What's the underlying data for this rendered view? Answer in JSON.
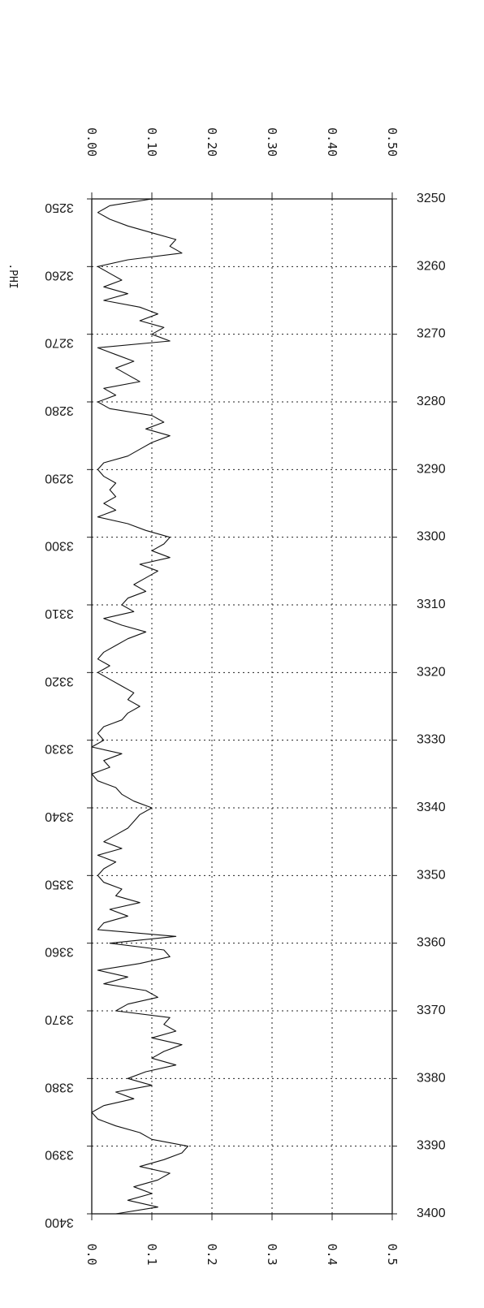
{
  "chart_data": {
    "type": "line",
    "orientation": "vertical-well-log",
    "curve_name": ".PHI",
    "y_axis": {
      "ylim": [
        3250,
        3400
      ],
      "step": 10,
      "labels": [
        "3250",
        "3260",
        "3270",
        "3280",
        "3290",
        "3300",
        "3310",
        "3320",
        "3330",
        "3340",
        "3350",
        "3360",
        "3370",
        "3380",
        "3390",
        "3400"
      ]
    },
    "x_axis": {
      "xlim": [
        0,
        0.5
      ],
      "step": 0.1,
      "top_labels": [
        "0.00",
        "0.10",
        "0.20",
        "0.30",
        "0.40",
        "0.50"
      ],
      "bottom_labels": [
        "0.0",
        "0.1",
        "0.2",
        "0.3",
        "0.4",
        "0.5"
      ]
    },
    "grid": true,
    "series": [
      {
        "name": ".PHI",
        "depth": [
          3250,
          3251,
          3252,
          3253,
          3254,
          3255,
          3256,
          3257,
          3258,
          3259,
          3260,
          3261,
          3262,
          3263,
          3264,
          3265,
          3266,
          3267,
          3268,
          3269,
          3270,
          3271,
          3272,
          3273,
          3274,
          3275,
          3276,
          3277,
          3278,
          3279,
          3280,
          3281,
          3282,
          3283,
          3284,
          3285,
          3286,
          3287,
          3288,
          3289,
          3290,
          3291,
          3292,
          3293,
          3294,
          3295,
          3296,
          3297,
          3298,
          3299,
          3300,
          3301,
          3302,
          3303,
          3304,
          3305,
          3306,
          3307,
          3308,
          3309,
          3310,
          3311,
          3312,
          3313,
          3314,
          3315,
          3316,
          3317,
          3318,
          3319,
          3320,
          3321,
          3322,
          3323,
          3324,
          3325,
          3326,
          3327,
          3328,
          3329,
          3330,
          3331,
          3332,
          3333,
          3334,
          3335,
          3336,
          3337,
          3338,
          3339,
          3340,
          3341,
          3342,
          3343,
          3344,
          3345,
          3346,
          3347,
          3348,
          3349,
          3350,
          3351,
          3352,
          3353,
          3354,
          3355,
          3356,
          3357,
          3358,
          3359,
          3360,
          3361,
          3362,
          3363,
          3364,
          3365,
          3366,
          3367,
          3368,
          3369,
          3370,
          3371,
          3372,
          3373,
          3374,
          3375,
          3376,
          3377,
          3378,
          3379,
          3380,
          3381,
          3382,
          3383,
          3384,
          3385,
          3386,
          3387,
          3388,
          3389,
          3390,
          3391,
          3392,
          3393,
          3394,
          3395,
          3396,
          3397,
          3398,
          3399,
          3400
        ],
        "phi": [
          0.1,
          0.03,
          0.01,
          0.03,
          0.06,
          0.1,
          0.14,
          0.13,
          0.15,
          0.06,
          0.01,
          0.03,
          0.05,
          0.02,
          0.06,
          0.02,
          0.08,
          0.11,
          0.08,
          0.12,
          0.1,
          0.13,
          0.01,
          0.04,
          0.07,
          0.04,
          0.06,
          0.08,
          0.02,
          0.04,
          0.01,
          0.03,
          0.1,
          0.12,
          0.09,
          0.13,
          0.1,
          0.08,
          0.06,
          0.02,
          0.01,
          0.02,
          0.04,
          0.03,
          0.04,
          0.02,
          0.04,
          0.01,
          0.06,
          0.09,
          0.13,
          0.12,
          0.1,
          0.13,
          0.08,
          0.11,
          0.09,
          0.07,
          0.09,
          0.06,
          0.05,
          0.07,
          0.02,
          0.05,
          0.09,
          0.06,
          0.04,
          0.02,
          0.01,
          0.03,
          0.01,
          0.03,
          0.05,
          0.07,
          0.06,
          0.08,
          0.06,
          0.05,
          0.02,
          0.01,
          0.02,
          0.0,
          0.05,
          0.02,
          0.03,
          0.0,
          0.01,
          0.04,
          0.05,
          0.07,
          0.1,
          0.08,
          0.07,
          0.06,
          0.04,
          0.02,
          0.05,
          0.01,
          0.04,
          0.02,
          0.01,
          0.02,
          0.05,
          0.04,
          0.08,
          0.03,
          0.06,
          0.02,
          0.01,
          0.14,
          0.03,
          0.12,
          0.13,
          0.08,
          0.01,
          0.06,
          0.02,
          0.09,
          0.11,
          0.06,
          0.04,
          0.13,
          0.12,
          0.14,
          0.1,
          0.15,
          0.12,
          0.1,
          0.14,
          0.09,
          0.06,
          0.1,
          0.04,
          0.07,
          0.02,
          0.0,
          0.01,
          0.04,
          0.08,
          0.1,
          0.16,
          0.15,
          0.12,
          0.08,
          0.13,
          0.11,
          0.07,
          0.1,
          0.06,
          0.11,
          0.04
        ]
      }
    ]
  }
}
